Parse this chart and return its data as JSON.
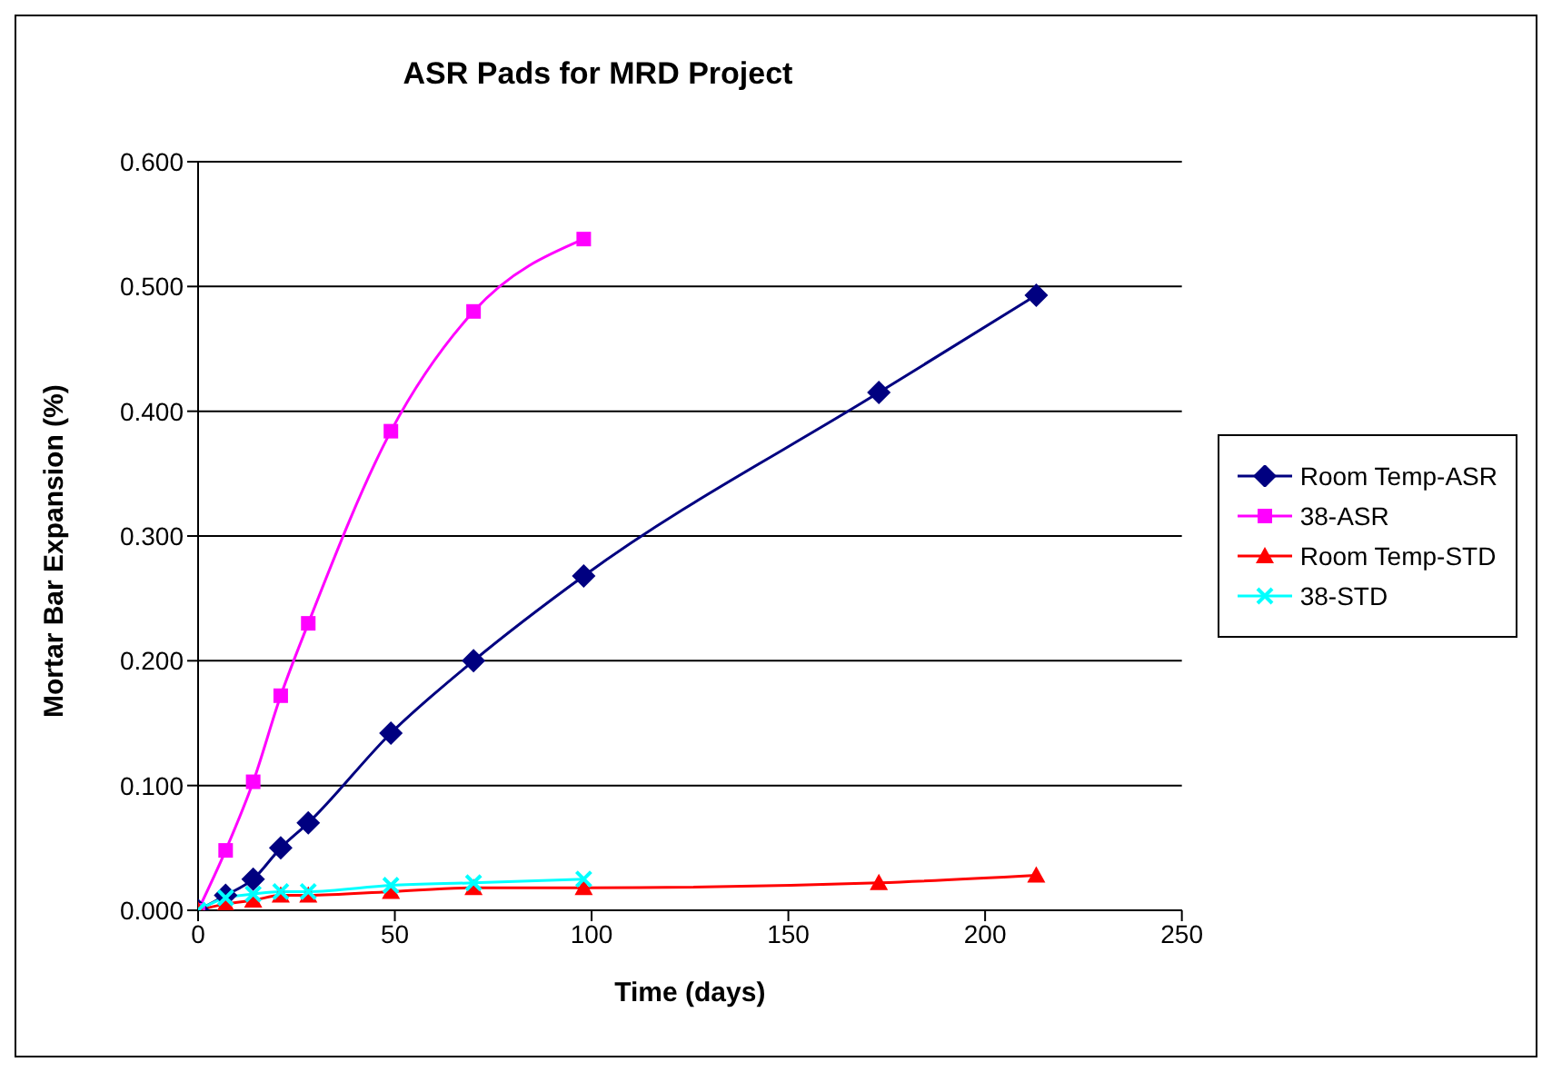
{
  "chart_data": {
    "type": "line",
    "title": "ASR Pads for MRD Project",
    "xlabel": "Time (days)",
    "ylabel": "Mortar Bar Expansion (%)",
    "xlim": [
      0,
      250
    ],
    "xticks": [
      0,
      50,
      100,
      150,
      200,
      250
    ],
    "ylim": [
      0,
      0.6
    ],
    "yticks": [
      {
        "value": 0,
        "label": "0.000"
      },
      {
        "value": 0.1,
        "label": "0.100"
      },
      {
        "value": 0.2,
        "label": "0.200"
      },
      {
        "value": 0.3,
        "label": "0.300"
      },
      {
        "value": 0.4,
        "label": "0.400"
      },
      {
        "value": 0.5,
        "label": "0.500"
      },
      {
        "value": 0.6,
        "label": "0.600"
      }
    ],
    "grid": "y",
    "legend": "right",
    "series": [
      {
        "name": "Room Temp-ASR",
        "color": "#000080",
        "marker": "diamond",
        "x": [
          0,
          7,
          14,
          21,
          28,
          49,
          70,
          98,
          173,
          213
        ],
        "values": [
          0,
          0.012,
          0.025,
          0.05,
          0.07,
          0.142,
          0.2,
          0.268,
          0.415,
          0.493
        ]
      },
      {
        "name": "38-ASR",
        "color": "#ff00ff",
        "marker": "square",
        "x": [
          0,
          7,
          14,
          21,
          28,
          49,
          70,
          98
        ],
        "values": [
          0,
          0.048,
          0.103,
          0.172,
          0.23,
          0.384,
          0.48,
          0.538
        ]
      },
      {
        "name": "Room Temp-STD",
        "color": "#ff0000",
        "marker": "triangle",
        "x": [
          0,
          7,
          14,
          21,
          28,
          49,
          70,
          98,
          173,
          213
        ],
        "values": [
          0,
          0.005,
          0.008,
          0.012,
          0.012,
          0.015,
          0.018,
          0.018,
          0.022,
          0.028
        ]
      },
      {
        "name": "38-STD",
        "color": "#00ffff",
        "marker": "cross",
        "x": [
          0,
          7,
          14,
          21,
          28,
          49,
          70,
          98
        ],
        "values": [
          0,
          0.01,
          0.013,
          0.015,
          0.015,
          0.02,
          0.022,
          0.025
        ]
      }
    ]
  }
}
